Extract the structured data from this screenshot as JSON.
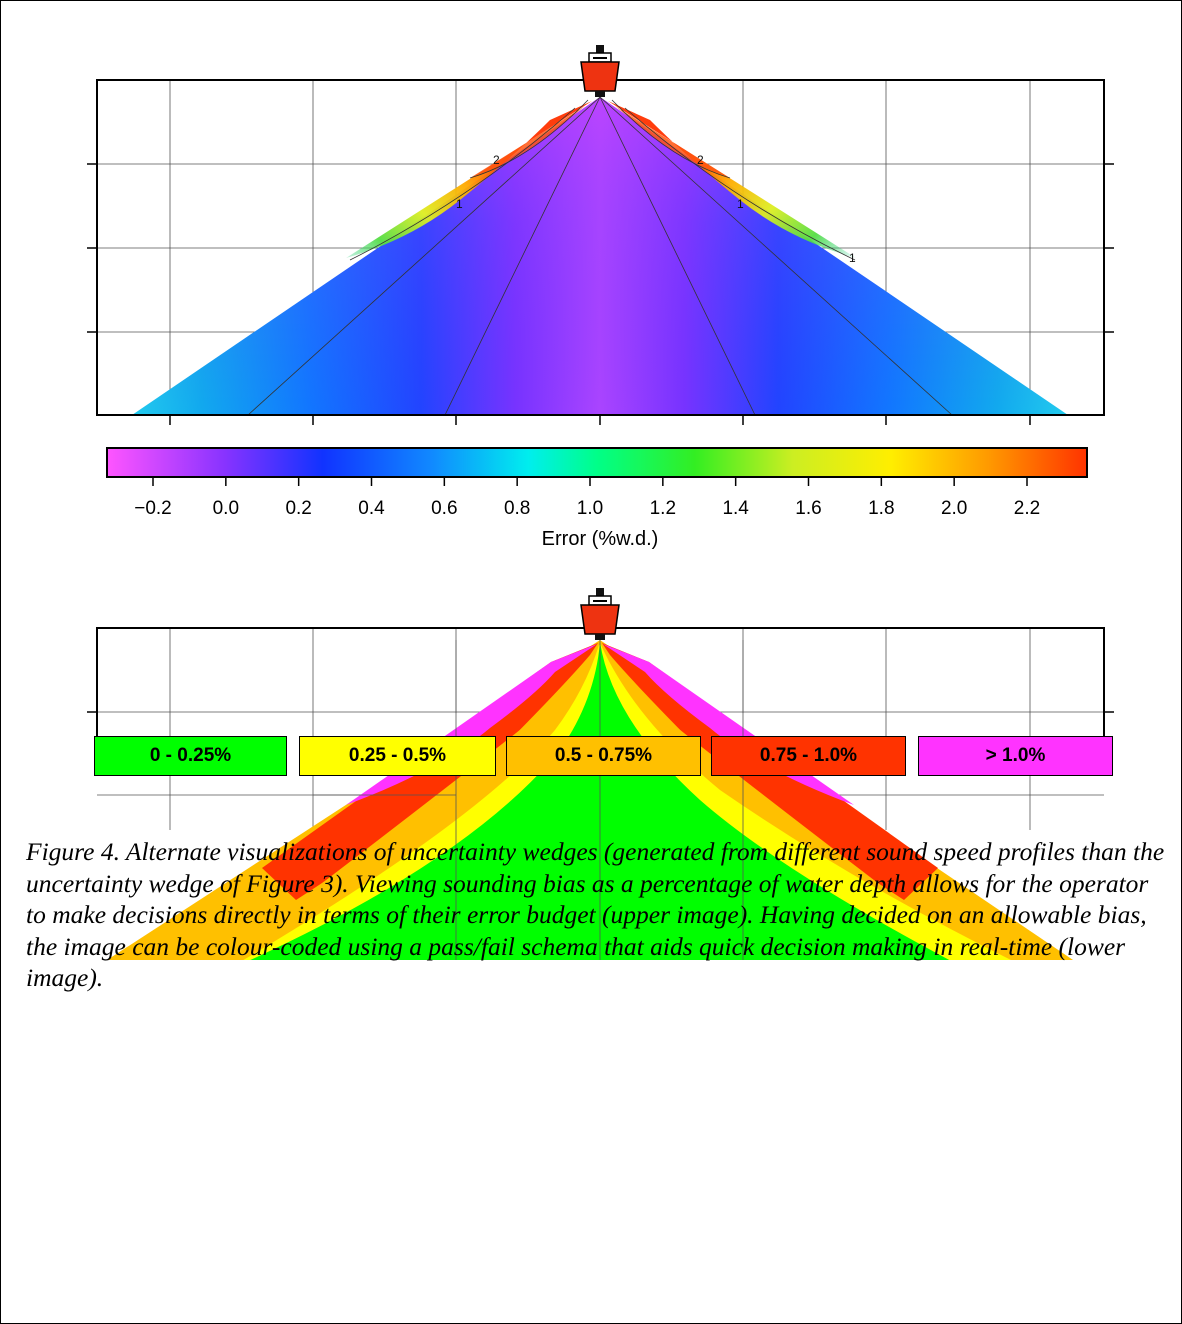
{
  "upper_panel": {
    "contour_labels": [
      "2",
      "1",
      "1",
      "2",
      "1"
    ]
  },
  "colorbar": {
    "ticks": [
      "−0.2",
      "0.0",
      "0.2",
      "0.4",
      "0.6",
      "0.8",
      "1.0",
      "1.2",
      "1.4",
      "1.6",
      "1.8",
      "2.0",
      "2.2"
    ],
    "title": "Error (%w.d.)",
    "colors": [
      "#ff55ff",
      "#8833ff",
      "#1133ff",
      "#1188ff",
      "#00eeee",
      "#00ff88",
      "#33ee22",
      "#ccee22",
      "#ffee00",
      "#ff9900",
      "#ff3300"
    ]
  },
  "legend": {
    "items": [
      {
        "label": "0 - 0.25%",
        "color": "#00ff00"
      },
      {
        "label": "0.25 - 0.5%",
        "color": "#ffff00"
      },
      {
        "label": "0.5 - 0.75%",
        "color": "#ffc000"
      },
      {
        "label": "0.75 - 1.0%",
        "color": "#ff3300"
      },
      {
        "label": "> 1.0%",
        "color": "#ff33ff"
      }
    ]
  },
  "caption": {
    "text": "Figure 4.  Alternate visualizations of uncertainty wedges (generated from different sound speed profiles than the uncertainty wedge of Figure 3).  Viewing sounding bias as a percentage of water depth allows for the operator to make decisions directly in terms of their error budget (upper image).  Having decided on an allowable bias, the image can be colour-coded using a pass/fail schema that aids quick decision making in real-time (lower image)."
  }
}
